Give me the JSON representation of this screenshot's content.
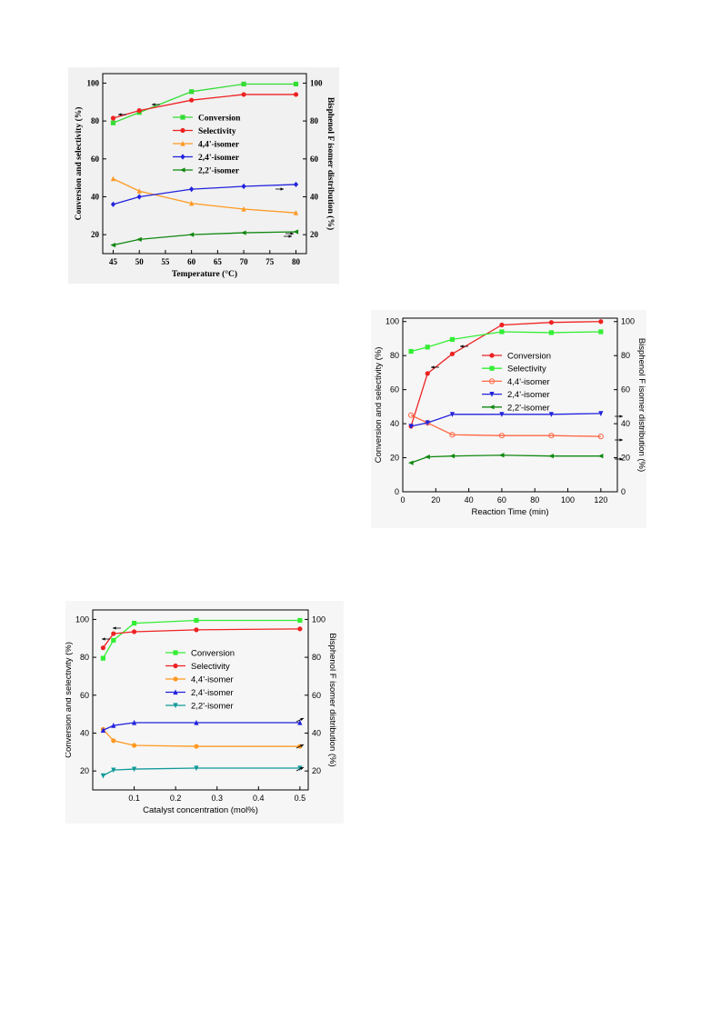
{
  "chart_data": [
    {
      "type": "line",
      "font": "serif",
      "x": [
        45,
        50,
        60,
        70,
        80
      ],
      "xlabel": "Temperature (°C)",
      "ylabel": "Conversion and selectivity (%)",
      "y2label": "Bisphenol F isomer distribution (%)",
      "xlim": [
        43,
        82
      ],
      "ylim": [
        10,
        105
      ],
      "xticks": [
        45,
        50,
        55,
        60,
        65,
        70,
        75,
        80
      ],
      "yticks": [
        20,
        40,
        60,
        80,
        100
      ],
      "legend_position": "center",
      "series": [
        {
          "name": "Conversion",
          "color": "#33dd33",
          "marker": "square",
          "values": [
            79,
            84.5,
            95.5,
            99.5,
            99.5
          ]
        },
        {
          "name": "Selectivity",
          "color": "#ee2222",
          "marker": "circle",
          "values": [
            81.5,
            85.5,
            91,
            94,
            94
          ]
        },
        {
          "name": "4,4'-isomer",
          "color": "#ff9922",
          "marker": "triangle",
          "values": [
            49.5,
            43,
            36.5,
            33.5,
            31.5
          ]
        },
        {
          "name": "2,4'-isomer",
          "color": "#2222dd",
          "marker": "diamond",
          "values": [
            36,
            40,
            44,
            45.5,
            46.5
          ]
        },
        {
          "name": "2,2'-isomer",
          "color": "#118811",
          "marker": "tri-left",
          "values": [
            14.5,
            17.5,
            20,
            21,
            21.5
          ]
        }
      ]
    },
    {
      "type": "line",
      "font": "sans",
      "x": [
        5,
        15,
        30,
        60,
        90,
        120
      ],
      "xlabel": "Reaction Time (min)",
      "ylabel": "Conversion and selectivity (%)",
      "y2label": "Bisphenol F isomer distribution (%)",
      "xlim": [
        0,
        130
      ],
      "ylim": [
        0,
        102
      ],
      "xticks": [
        0,
        20,
        40,
        60,
        80,
        100,
        120
      ],
      "yticks": [
        0,
        20,
        40,
        60,
        80,
        100
      ],
      "legend_position": "center-right",
      "series": [
        {
          "name": "Conversion",
          "color": "#ee2222",
          "marker": "circle",
          "values": [
            38.5,
            69.5,
            81,
            98,
            99.5,
            100
          ]
        },
        {
          "name": "Selectivity",
          "color": "#33ee33",
          "marker": "square",
          "values": [
            82.5,
            85,
            89.5,
            94,
            93.5,
            94
          ]
        },
        {
          "name": "4,4'-isomer",
          "color": "#ff6644",
          "marker": "circle-open",
          "values": [
            45,
            40.5,
            33.5,
            33,
            33,
            32.5
          ]
        },
        {
          "name": "2,4'-isomer",
          "color": "#2222dd",
          "marker": "tri-down",
          "values": [
            38.5,
            40.5,
            45.5,
            45.5,
            45.5,
            46
          ]
        },
        {
          "name": "2,2'-isomer",
          "color": "#118811",
          "marker": "tri-left",
          "values": [
            17,
            20.5,
            21,
            21.5,
            21,
            21
          ]
        }
      ]
    },
    {
      "type": "line",
      "font": "sans",
      "x": [
        0.025,
        0.05,
        0.1,
        0.25,
        0.5
      ],
      "xlabel": "Catalyst concentration (mol%)",
      "ylabel": "Conversion and selectivity (%)",
      "y2label": "Bisphenol F isomer distribution (%)",
      "xlim": [
        0,
        0.52
      ],
      "ylim": [
        10,
        105
      ],
      "xticks": [
        0.1,
        0.2,
        0.3,
        0.4,
        0.5
      ],
      "yticks": [
        20,
        40,
        60,
        80,
        100
      ],
      "legend_position": "center",
      "series": [
        {
          "name": "Conversion",
          "color": "#33ee33",
          "marker": "square",
          "values": [
            79.5,
            89,
            98,
            99.5,
            99.5
          ]
        },
        {
          "name": "Selectivity",
          "color": "#ee2222",
          "marker": "circle",
          "values": [
            85,
            92.5,
            93.5,
            94.5,
            95
          ]
        },
        {
          "name": "4,4'-isomer",
          "color": "#ff9922",
          "marker": "circle",
          "values": [
            42,
            36,
            33.5,
            33,
            33
          ]
        },
        {
          "name": "2,4'-isomer",
          "color": "#2222dd",
          "marker": "triangle",
          "values": [
            41.5,
            44,
            45.5,
            45.5,
            45.5
          ]
        },
        {
          "name": "2,2'-isomer",
          "color": "#119999",
          "marker": "tri-down",
          "values": [
            17.5,
            20.5,
            21,
            21.5,
            21.5
          ]
        }
      ]
    }
  ]
}
